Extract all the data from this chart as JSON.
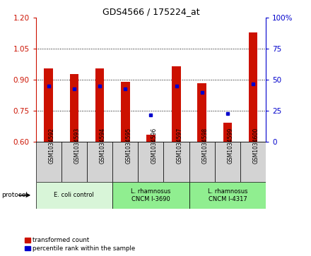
{
  "title": "GDS4566 / 175224_at",
  "samples": [
    "GSM1034592",
    "GSM1034593",
    "GSM1034594",
    "GSM1034595",
    "GSM1034596",
    "GSM1034597",
    "GSM1034598",
    "GSM1034599",
    "GSM1034600"
  ],
  "transformed_counts": [
    0.955,
    0.93,
    0.955,
    0.89,
    0.635,
    0.965,
    0.885,
    0.695,
    1.13
  ],
  "percentile_ranks": [
    45,
    43,
    45,
    43,
    22,
    45,
    40,
    23,
    47
  ],
  "ylim_left": [
    0.6,
    1.2
  ],
  "ylim_right": [
    0,
    100
  ],
  "yticks_left": [
    0.6,
    0.75,
    0.9,
    1.05,
    1.2
  ],
  "yticks_right": [
    0,
    25,
    50,
    75,
    100
  ],
  "groups": [
    {
      "label": "E. coli control",
      "start": 0,
      "end": 3,
      "color": "#d8f5d8"
    },
    {
      "label": "L. rhamnosus\nCNCM I-3690",
      "start": 3,
      "end": 6,
      "color": "#90ee90"
    },
    {
      "label": "L. rhamnosus\nCNCM I-4317",
      "start": 6,
      "end": 9,
      "color": "#90ee90"
    }
  ],
  "bar_color": "#cc1100",
  "dot_color": "#0000cc",
  "bar_width": 0.35,
  "bar_bottom": 0.6,
  "right_axis_color": "#0000cc",
  "left_axis_color": "#cc1100",
  "background_plot": "#ffffff",
  "grid_color": "#000000",
  "sample_box_color": "#d3d3d3",
  "legend_red_label": "transformed count",
  "legend_blue_label": "percentile rank within the sample",
  "protocol_label": "protocol"
}
